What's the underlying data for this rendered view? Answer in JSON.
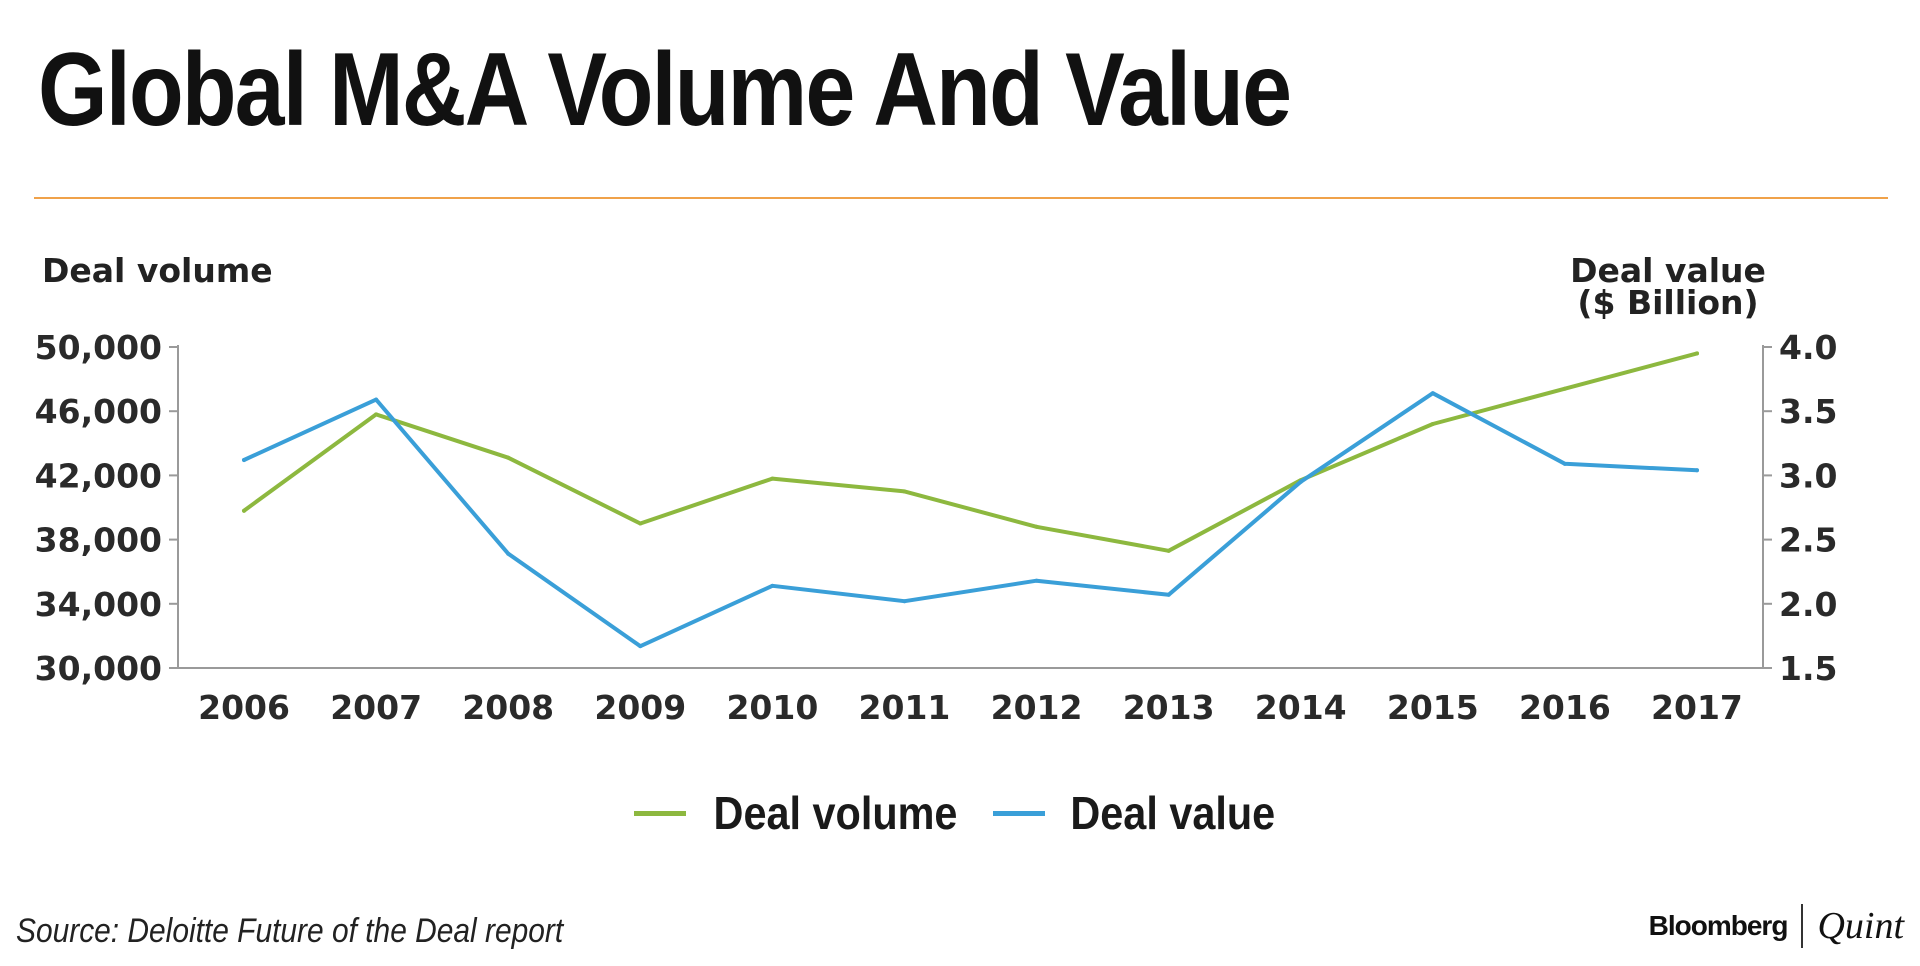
{
  "title": "Global M&A Volume And Value",
  "colors": {
    "accent_rule": "#f0a24a",
    "deal_volume": "#8db83f",
    "deal_value": "#3a9fd8"
  },
  "chart_data": {
    "type": "line",
    "title": "Global M&A Volume And Value",
    "categories": [
      "2006",
      "2007",
      "2008",
      "2009",
      "2010",
      "2011",
      "2012",
      "2013",
      "2014",
      "2015",
      "2016",
      "2017"
    ],
    "y_left_label": "Deal volume",
    "y_right_label_line1": "Deal value",
    "y_right_label_line2": "($ Billion)",
    "y_left_ticks": [
      "50,000",
      "46,000",
      "42,000",
      "38,000",
      "34,000",
      "30,000"
    ],
    "y_left_range": [
      30000,
      50000
    ],
    "y_right_ticks": [
      "4.0",
      "3.5",
      "3.0",
      "2.5",
      "2.0",
      "1.5"
    ],
    "y_right_range": [
      1.5,
      4.0
    ],
    "series": [
      {
        "name": "Deal volume",
        "axis": "left",
        "values": [
          39800,
          45800,
          43100,
          39000,
          41800,
          41000,
          38800,
          37300,
          41700,
          45200,
          47400,
          49600
        ]
      },
      {
        "name": "Deal value",
        "axis": "right",
        "values": [
          3.12,
          3.59,
          2.39,
          1.67,
          2.14,
          2.02,
          2.18,
          2.07,
          2.95,
          3.64,
          3.09,
          3.04
        ]
      }
    ],
    "legend_position": "bottom"
  },
  "legend": {
    "items": [
      {
        "label": "Deal volume"
      },
      {
        "label": "Deal value"
      }
    ]
  },
  "footer": {
    "source": "Source: Deloitte Future of the Deal report",
    "brand_left": "Bloomberg",
    "brand_right": "Quint"
  }
}
